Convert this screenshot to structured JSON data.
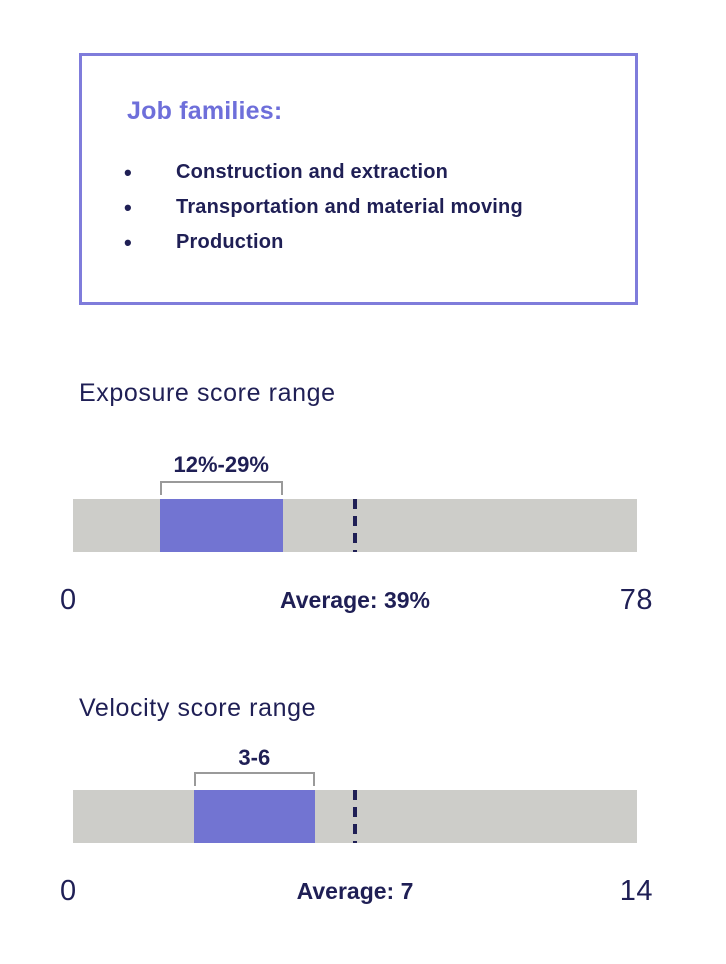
{
  "info_box": {
    "heading": "Job families:",
    "items": [
      "Construction and extraction",
      "Transportation and material moving",
      "Production"
    ]
  },
  "chart_data": [
    {
      "type": "bar",
      "subtype": "range-highlight",
      "title": "Exposure score range",
      "axis_min": 0,
      "axis_max": 78,
      "range_min": 12,
      "range_max": 29,
      "range_label": "12%-29%",
      "average": 39,
      "average_label": "Average: 39%",
      "min_tick_label": "0",
      "max_tick_label": "78",
      "grid": false,
      "legend": false
    },
    {
      "type": "bar",
      "subtype": "range-highlight",
      "title": "Velocity score range",
      "axis_min": 0,
      "axis_max": 14,
      "range_min": 3,
      "range_max": 6,
      "range_label": "3-6",
      "average": 7,
      "average_label": "Average: 7",
      "min_tick_label": "0",
      "max_tick_label": "14",
      "grid": false,
      "legend": false
    }
  ],
  "colors": {
    "accent_purple": "#7274d2",
    "heading_purple": "#6e6fda",
    "border_purple": "#7f7cdb",
    "track_gray": "#cdcdc9",
    "bracket_gray": "#9a9a9a",
    "text_navy": "#1f1f55"
  }
}
